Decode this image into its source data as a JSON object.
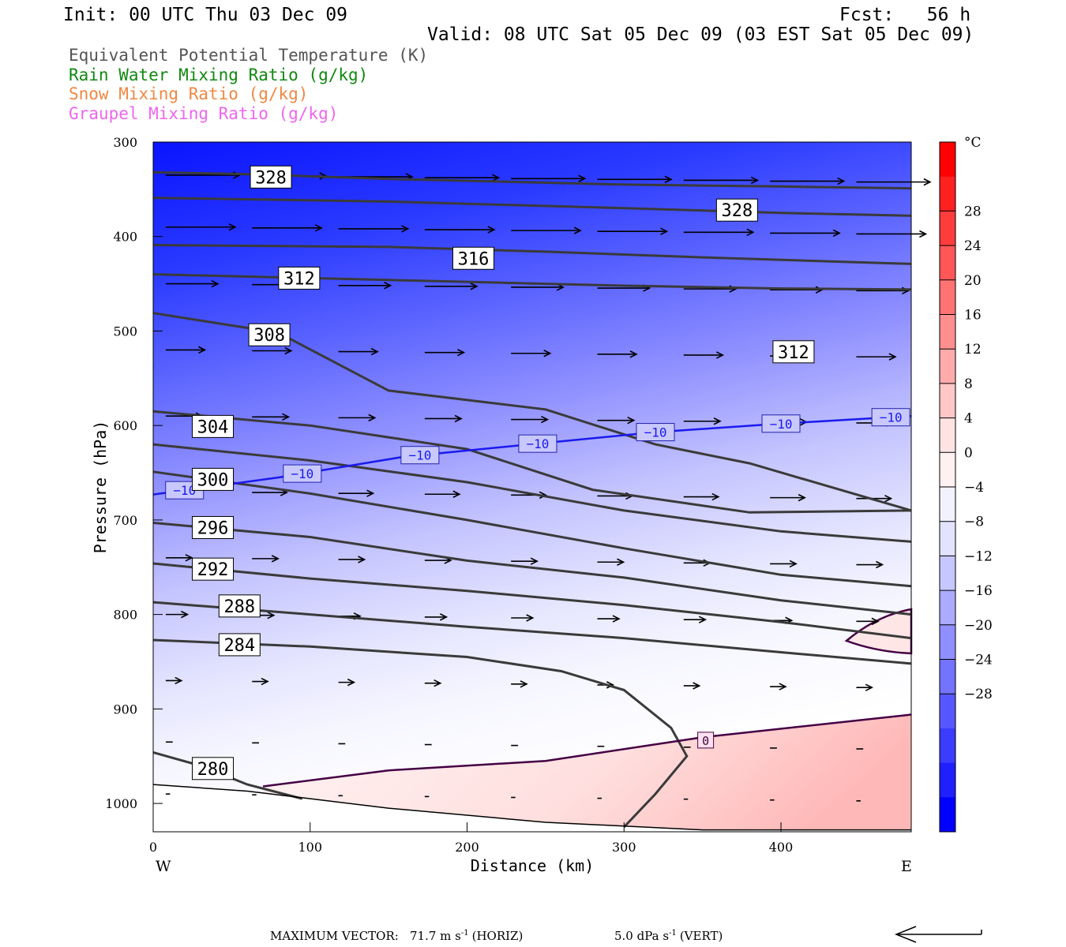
{
  "header": {
    "init": "Init: 00 UTC Thu 03 Dec 09",
    "fcst": "Fcst:   56 h",
    "valid": "Valid: 08 UTC Sat 05 Dec 09 (03 EST Sat 05 Dec 09)"
  },
  "legend": [
    {
      "label": "Equivalent Potential Temperature (K)",
      "color": "#555555"
    },
    {
      "label": "Rain Water Mixing Ratio (g/kg)",
      "color": "#118811"
    },
    {
      "label": "Snow Mixing Ratio (g/kg)",
      "color": "#ee8844"
    },
    {
      "label": "Graupel Mixing Ratio (g/kg)",
      "color": "#ee66ee"
    }
  ],
  "footer": {
    "max_vector_label": "MAXIMUM VECTOR:",
    "horiz": "71.7 m s",
    "horiz_unit": "(HORIZ)",
    "vert": "5.0 dPa s",
    "vert_unit": "(VERT)",
    "exp": "-1"
  },
  "chart_data": {
    "type": "cross-section",
    "xlabel": "Distance (km)",
    "ylabel": "Pressure (hPa)",
    "x_ticks": [
      0,
      100,
      200,
      300,
      400
    ],
    "xlim": [
      0,
      483
    ],
    "y_ticks": [
      300,
      400,
      500,
      600,
      700,
      800,
      900,
      1000
    ],
    "ylim": [
      300,
      1030
    ],
    "west_label": "W",
    "east_label": "E",
    "colorbar": {
      "unit": "°C",
      "ticks": [
        "28",
        "24",
        "20",
        "16",
        "12",
        "8",
        "4",
        "0",
        "−4",
        "−8",
        "−12",
        "−16",
        "−20",
        "−24",
        "−28"
      ],
      "colors": [
        "#ff0000",
        "#ff2020",
        "#ff3c3c",
        "#ff5757",
        "#ff7373",
        "#ff8f8f",
        "#ffabab",
        "#ffc7c7",
        "#ffe3e3",
        "#fff1f1",
        "#f2f2ff",
        "#e3e3ff",
        "#c7c7ff",
        "#ababff",
        "#8f8fff",
        "#7373ff",
        "#5757ff",
        "#3c3cff",
        "#2020ff",
        "#0000ff"
      ]
    },
    "theta_e": [
      {
        "label": "328",
        "points": [
          [
            0,
            332
          ],
          [
            60,
            334
          ],
          [
            150,
            339
          ],
          [
            300,
            345
          ],
          [
            400,
            347
          ],
          [
            483,
            349
          ]
        ],
        "label_at": [
          75,
          337
        ]
      },
      {
        "label": "328",
        "points": [
          [
            0,
            359
          ],
          [
            150,
            363
          ],
          [
            300,
            370
          ],
          [
            400,
            375
          ],
          [
            483,
            378
          ]
        ],
        "label_at": [
          372,
          372
        ]
      },
      {
        "label": "316",
        "points": [
          [
            0,
            409
          ],
          [
            150,
            411
          ],
          [
            250,
            416
          ],
          [
            350,
            422
          ],
          [
            483,
            429
          ]
        ],
        "label_at": [
          204,
          423
        ]
      },
      {
        "label": "312",
        "points": [
          [
            0,
            440
          ],
          [
            150,
            446
          ],
          [
            300,
            452
          ],
          [
            400,
            455
          ],
          [
            483,
            456
          ]
        ],
        "label_at": [
          93,
          444
        ]
      },
      {
        "label": "312",
        "points": [
          [
            0,
            481
          ],
          [
            80,
            502
          ],
          [
            150,
            563
          ],
          [
            250,
            583
          ],
          [
            320,
            620
          ],
          [
            380,
            640
          ],
          [
            483,
            690
          ]
        ],
        "label_at": [
          408,
          522
        ]
      },
      {
        "label": "308",
        "points": [
          [
            0,
            585
          ],
          [
            100,
            600
          ],
          [
            200,
            625
          ],
          [
            280,
            668
          ],
          [
            380,
            692
          ],
          [
            483,
            690
          ]
        ],
        "label_at": [
          74,
          504
        ]
      },
      {
        "label": "304",
        "points": [
          [
            0,
            620
          ],
          [
            100,
            637
          ],
          [
            200,
            660
          ],
          [
            300,
            690
          ],
          [
            400,
            712
          ],
          [
            483,
            723
          ]
        ],
        "label_at": [
          38,
          601
        ]
      },
      {
        "label": "300",
        "points": [
          [
            0,
            649
          ],
          [
            100,
            672
          ],
          [
            200,
            700
          ],
          [
            300,
            730
          ],
          [
            400,
            758
          ],
          [
            483,
            770
          ]
        ],
        "label_at": [
          38,
          657
        ]
      },
      {
        "label": "296",
        "points": [
          [
            0,
            703
          ],
          [
            100,
            718
          ],
          [
            200,
            743
          ],
          [
            300,
            761
          ],
          [
            400,
            785
          ],
          [
            483,
            800
          ]
        ],
        "label_at": [
          38,
          708
        ]
      },
      {
        "label": "292",
        "points": [
          [
            0,
            746
          ],
          [
            100,
            762
          ],
          [
            200,
            775
          ],
          [
            300,
            790
          ],
          [
            400,
            808
          ],
          [
            483,
            825
          ]
        ],
        "label_at": [
          38,
          752
        ]
      },
      {
        "label": "288",
        "points": [
          [
            0,
            787
          ],
          [
            100,
            800
          ],
          [
            200,
            813
          ],
          [
            300,
            825
          ],
          [
            400,
            840
          ],
          [
            483,
            852
          ]
        ],
        "label_at": [
          55,
          791
        ]
      },
      {
        "label": "284",
        "points": [
          [
            0,
            827
          ],
          [
            100,
            834
          ],
          [
            200,
            845
          ],
          [
            260,
            860
          ],
          [
            300,
            880
          ],
          [
            330,
            920
          ],
          [
            340,
            950
          ],
          [
            320,
            990
          ],
          [
            300,
            1025
          ]
        ],
        "label_at": [
          55,
          832
        ]
      },
      {
        "label": "280",
        "points": [
          [
            0,
            946
          ],
          [
            30,
            960
          ],
          [
            60,
            980
          ],
          [
            95,
            995
          ]
        ],
        "label_at": [
          38,
          963
        ]
      }
    ],
    "isotherm_m10": {
      "label": "−10",
      "points": [
        [
          0,
          673
        ],
        [
          80,
          655
        ],
        [
          160,
          633
        ],
        [
          240,
          620
        ],
        [
          320,
          607
        ],
        [
          400,
          598
        ],
        [
          483,
          590
        ]
      ]
    },
    "freezing": {
      "label": "0",
      "points": [
        [
          70,
          982
        ],
        [
          150,
          965
        ],
        [
          250,
          955
        ],
        [
          350,
          930
        ],
        [
          483,
          906
        ]
      ]
    },
    "surface": [
      [
        0,
        980
      ],
      [
        60,
        987
      ],
      [
        150,
        1005
      ],
      [
        250,
        1020
      ],
      [
        350,
        1028
      ],
      [
        483,
        1028
      ]
    ]
  }
}
